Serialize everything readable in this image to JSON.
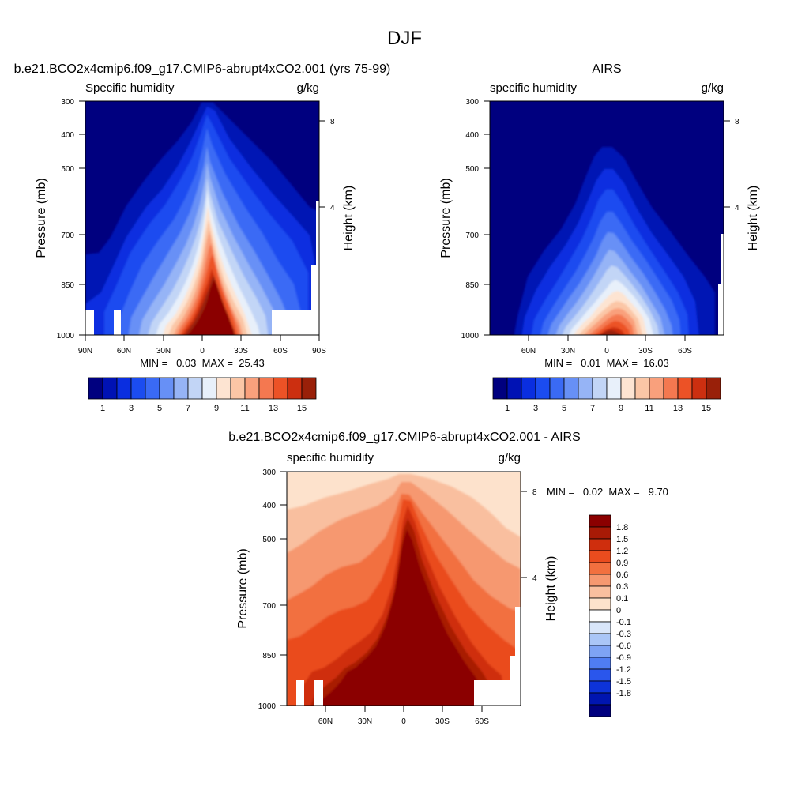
{
  "figure_title": "DJF",
  "chart_data": [
    {
      "type": "heatmap",
      "id": "model",
      "title": "b.e21.BCO2x4cmip6.f09_g17.CMIP6-abrupt4xCO2.001 (yrs 75-99)",
      "left_label": "Specific humidity",
      "right_label": "g/kg",
      "ylabel": "Pressure (mb)",
      "ylabel_right": "Height (km)",
      "yticks": [
        "300",
        "400",
        "500",
        "700",
        "850",
        "1000"
      ],
      "height_ticks": [
        "8",
        "4"
      ],
      "xticks": [
        "90N",
        "60N",
        "30N",
        "0",
        "30S",
        "60S",
        "90S"
      ],
      "x_range": [
        -90,
        90
      ],
      "y_range": [
        1000,
        300
      ],
      "min_max": "MIN =   0.03  MAX =  25.43",
      "levels": [
        1,
        2,
        3,
        4,
        5,
        6,
        7,
        8,
        9,
        10,
        11,
        12,
        13,
        14,
        15
      ],
      "colorbar_labels": [
        "1",
        "3",
        "5",
        "7",
        "9",
        "11",
        "13",
        "15"
      ],
      "colors": [
        "#00007f",
        "#0012b4",
        "#0a2ee0",
        "#1b4cf0",
        "#3a6af5",
        "#6790f6",
        "#96b4f6",
        "#c2d5f6",
        "#e8f0fa",
        "#fde4d2",
        "#fbc6a6",
        "#f9a07c",
        "#f47850",
        "#ec5226",
        "#cc2f10",
        "#992009"
      ],
      "series": [
        {
          "name": "",
          "values": [
            [
              -90,
              700
            ],
            [
              -60,
              600
            ],
            [
              -40,
              520
            ],
            [
              -20,
              420
            ],
            [
              -10,
              320
            ],
            [
              5,
              300
            ],
            [
              20,
              360
            ],
            [
              40,
              420
            ],
            [
              60,
              500
            ],
            [
              80,
              560
            ],
            [
              90,
              600
            ]
          ]
        }
      ]
    },
    {
      "type": "heatmap",
      "id": "obs",
      "title": "AIRS",
      "left_label": "specific humidity",
      "right_label": "g/kg",
      "ylabel": "Pressure (mb)",
      "ylabel_right": "Height (km)",
      "yticks": [
        "300",
        "400",
        "500",
        "700",
        "850",
        "1000"
      ],
      "height_ticks": [
        "8",
        "4"
      ],
      "xticks": [
        "60N",
        "30N",
        "0",
        "30S",
        "60S"
      ],
      "x_range": [
        -90,
        90
      ],
      "y_range": [
        1000,
        300
      ],
      "min_max": "MIN =   0.01  MAX =  16.03",
      "levels": [
        1,
        2,
        3,
        4,
        5,
        6,
        7,
        8,
        9,
        10,
        11,
        12,
        13,
        14,
        15
      ],
      "colorbar_labels": [
        "1",
        "3",
        "5",
        "7",
        "9",
        "11",
        "13",
        "15"
      ],
      "colors": [
        "#00007f",
        "#0012b4",
        "#0a2ee0",
        "#1b4cf0",
        "#3a6af5",
        "#6790f6",
        "#96b4f6",
        "#c2d5f6",
        "#e8f0fa",
        "#fde4d2",
        "#fbc6a6",
        "#f9a07c",
        "#f47850",
        "#ec5226",
        "#cc2f10",
        "#992009"
      ]
    },
    {
      "type": "heatmap",
      "id": "diff",
      "title": "b.e21.BCO2x4cmip6.f09_g17.CMIP6-abrupt4xCO2.001 - AIRS",
      "left_label": "specific humidity",
      "right_label": "g/kg",
      "ylabel": "Pressure (mb)",
      "ylabel_right": "Height (km)",
      "yticks": [
        "300",
        "400",
        "500",
        "700",
        "850",
        "1000"
      ],
      "height_ticks": [
        "8",
        "4"
      ],
      "xticks": [
        "60N",
        "30N",
        "0",
        "30S",
        "60S"
      ],
      "x_range": [
        -90,
        90
      ],
      "y_range": [
        1000,
        300
      ],
      "min_max": "MIN =   0.02  MAX =   9.70",
      "colorbar_labels": [
        "1.8",
        "1.5",
        "1.2",
        "0.9",
        "0.6",
        "0.3",
        "0.1",
        "0",
        "-0.1",
        "-0.3",
        "-0.6",
        "-0.9",
        "-1.2",
        "-1.5",
        "-1.8"
      ],
      "colors": [
        "#8b0000",
        "#a81a06",
        "#cf2e0d",
        "#ea4c1e",
        "#f2703f",
        "#f69870",
        "#f9bf9f",
        "#fde2cc",
        "#ffffff",
        "#d9e6fa",
        "#aac6f7",
        "#7ea3f4",
        "#4f7df2",
        "#2a56ec",
        "#0d33d9",
        "#0015b0",
        "#00007f"
      ]
    }
  ]
}
